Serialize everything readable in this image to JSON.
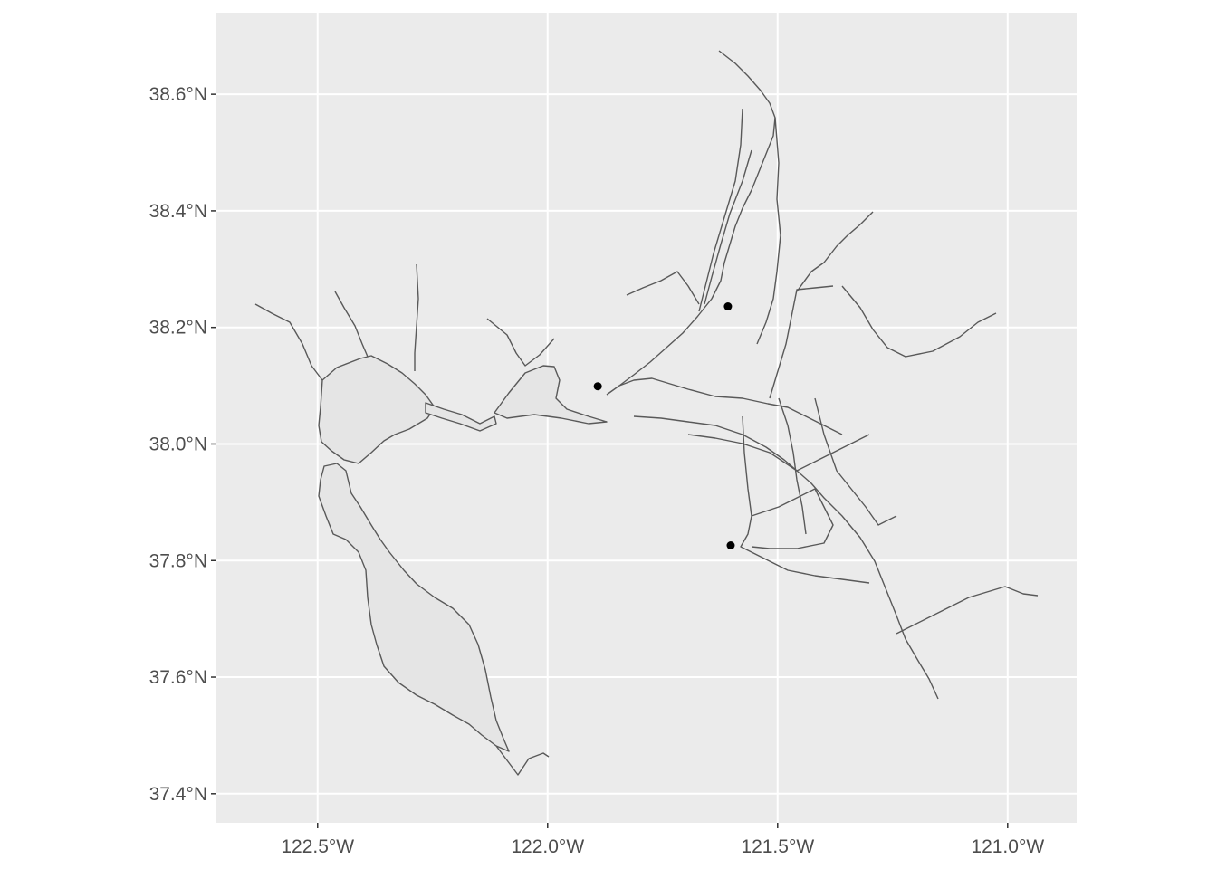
{
  "map": {
    "xlim": [
      -122.72,
      -120.85
    ],
    "ylim": [
      37.35,
      38.74
    ],
    "background": "#ebebeb",
    "grid_color": "#ffffff",
    "water_fill": "#e5e5e5",
    "outline_color": "#595959",
    "point_color": "#000000",
    "x_ticks": [
      {
        "value": -122.5,
        "label": "122.5°W"
      },
      {
        "value": -122.0,
        "label": "122.0°W"
      },
      {
        "value": -121.5,
        "label": "121.5°W"
      },
      {
        "value": -121.0,
        "label": "121.0°W"
      }
    ],
    "y_ticks": [
      {
        "value": 38.6,
        "label": "38.6°N"
      },
      {
        "value": 38.4,
        "label": "38.4°N"
      },
      {
        "value": 38.2,
        "label": "38.2°N"
      },
      {
        "value": 38.0,
        "label": "38.0°N"
      },
      {
        "value": 37.8,
        "label": "37.8°N"
      },
      {
        "value": 37.6,
        "label": "37.6°N"
      },
      {
        "value": 37.4,
        "label": "37.4°N"
      }
    ],
    "points": [
      {
        "lon": -121.608,
        "lat": 38.236
      },
      {
        "lon": -121.891,
        "lat": 38.099
      },
      {
        "lon": -121.602,
        "lat": 37.826
      }
    ]
  }
}
